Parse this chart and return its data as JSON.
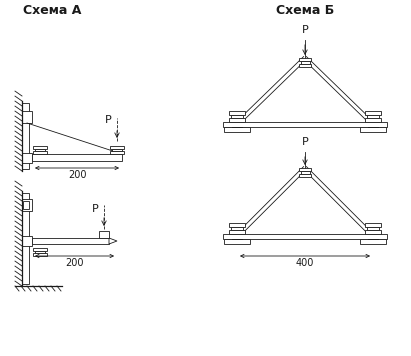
{
  "title_A": "Схема А",
  "title_B": "Схема Б",
  "label_P": "P",
  "dim_200": "200",
  "dim_400": "400",
  "bg_color": "#ffffff",
  "line_color": "#1a1a1a",
  "fig_width": 4.11,
  "fig_height": 3.56,
  "dpi": 100
}
